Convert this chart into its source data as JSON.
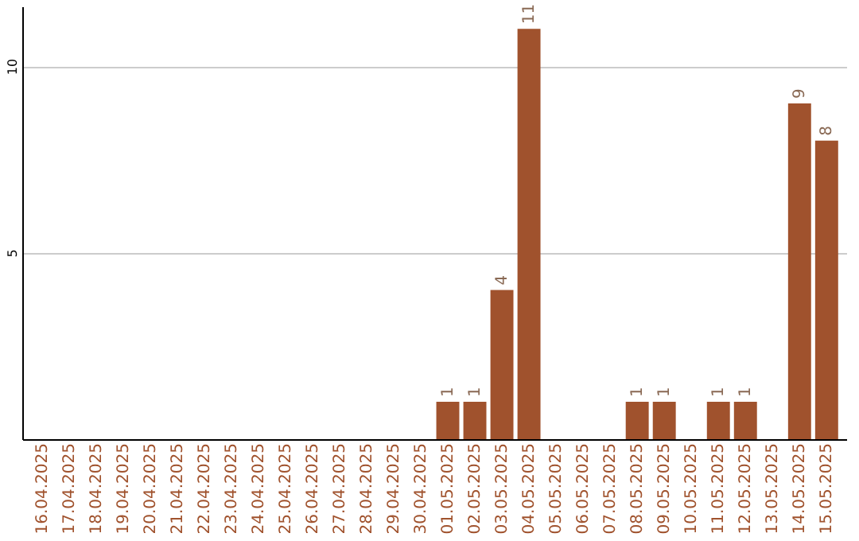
{
  "chart_data": {
    "type": "bar",
    "categories": [
      "16.04.2025",
      "17.04.2025",
      "18.04.2025",
      "19.04.2025",
      "20.04.2025",
      "21.04.2025",
      "22.04.2025",
      "23.04.2025",
      "24.04.2025",
      "25.04.2025",
      "26.04.2025",
      "27.04.2025",
      "28.04.2025",
      "29.04.2025",
      "30.04.2025",
      "01.05.2025",
      "02.05.2025",
      "03.05.2025",
      "04.05.2025",
      "05.05.2025",
      "06.05.2025",
      "07.05.2025",
      "08.05.2025",
      "09.05.2025",
      "10.05.2025",
      "11.05.2025",
      "12.05.2025",
      "13.05.2025",
      "14.05.2025",
      "15.05.2025"
    ],
    "values": [
      0,
      0,
      0,
      0,
      0,
      0,
      0,
      0,
      0,
      0,
      0,
      0,
      0,
      0,
      0,
      1,
      1,
      4,
      11,
      0,
      0,
      0,
      1,
      1,
      0,
      1,
      1,
      0,
      9,
      8
    ],
    "value_labels": [
      null,
      null,
      null,
      null,
      null,
      null,
      null,
      null,
      null,
      null,
      null,
      null,
      null,
      null,
      null,
      "1",
      "1",
      "4",
      "11",
      null,
      null,
      null,
      "1",
      "1",
      null,
      "1",
      "1",
      null,
      "9",
      "8"
    ],
    "color": "#a0522d",
    "ylim": [
      0,
      11.6
    ],
    "yticks": [
      5,
      10
    ],
    "grid": "y"
  }
}
